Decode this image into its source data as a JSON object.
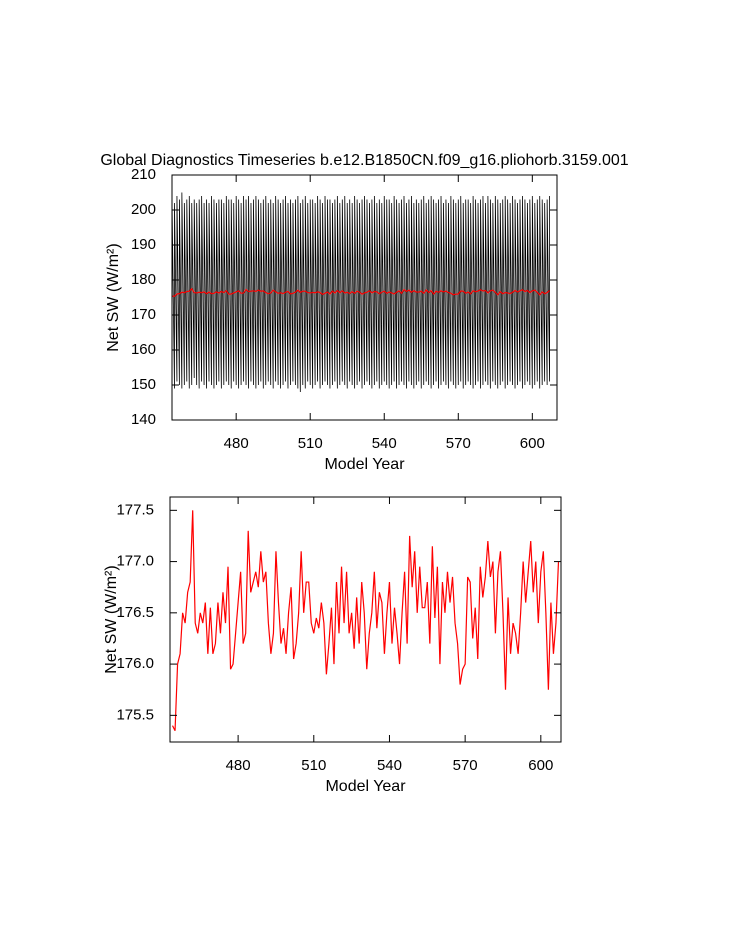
{
  "chart_data": [
    {
      "type": "line",
      "title": "Global Diagnostics Timeseries b.e12.B1850CN.f09_g16.pliohorb.3159.001",
      "xlabel": "Model Year",
      "ylabel": "Net SW (W/m²)",
      "xlim": [
        454,
        610
      ],
      "ylim": [
        140,
        210
      ],
      "xticks": [
        480,
        510,
        540,
        570,
        600
      ],
      "yticks": [
        140,
        150,
        160,
        170,
        180,
        190,
        200,
        210
      ],
      "x": [
        454,
        455,
        456,
        457,
        458,
        459,
        460,
        461,
        462,
        463,
        464,
        465,
        466,
        467,
        468,
        469,
        470,
        471,
        472,
        473,
        474,
        475,
        476,
        477,
        478,
        479,
        480,
        481,
        482,
        483,
        484,
        485,
        486,
        487,
        488,
        489,
        490,
        491,
        492,
        493,
        494,
        495,
        496,
        497,
        498,
        499,
        500,
        501,
        502,
        503,
        504,
        505,
        506,
        507,
        508,
        509,
        510,
        511,
        512,
        513,
        514,
        515,
        516,
        517,
        518,
        519,
        520,
        521,
        522,
        523,
        524,
        525,
        526,
        527,
        528,
        529,
        530,
        531,
        532,
        533,
        534,
        535,
        536,
        537,
        538,
        539,
        540,
        541,
        542,
        543,
        544,
        545,
        546,
        547,
        548,
        549,
        550,
        551,
        552,
        553,
        554,
        555,
        556,
        557,
        558,
        559,
        560,
        561,
        562,
        563,
        564,
        565,
        566,
        567,
        568,
        569,
        570,
        571,
        572,
        573,
        574,
        575,
        576,
        577,
        578,
        579,
        580,
        581,
        582,
        583,
        584,
        585,
        586,
        587,
        588,
        589,
        590,
        591,
        592,
        593,
        594,
        595,
        596,
        597,
        598,
        599,
        600,
        601,
        602,
        603,
        604,
        605,
        606,
        607
      ],
      "series": [
        {
          "color": "#000000",
          "high": [
            203,
            202,
            204,
            203,
            205,
            202,
            203,
            204,
            202,
            203,
            202,
            203,
            204,
            202,
            203,
            202,
            204,
            203,
            202,
            203,
            203,
            202,
            204,
            203,
            203,
            202,
            204,
            203,
            202,
            204,
            203,
            204,
            202,
            203,
            204,
            203,
            202,
            203,
            204,
            202,
            203,
            202,
            204,
            203,
            202,
            203,
            204,
            202,
            203,
            202,
            203,
            204,
            202,
            203,
            204,
            202,
            203,
            203,
            202,
            204,
            203,
            202,
            204,
            203,
            203,
            202,
            203,
            204,
            202,
            203,
            204,
            202,
            203,
            202,
            204,
            203,
            202,
            203,
            204,
            203,
            202,
            203,
            204,
            202,
            203,
            202,
            204,
            203,
            203,
            202,
            204,
            203,
            202,
            203,
            204,
            202,
            203,
            204,
            202,
            203,
            202,
            203,
            204,
            202,
            203,
            204,
            203,
            202,
            203,
            204,
            202,
            203,
            202,
            204,
            203,
            202,
            203,
            204,
            202,
            203,
            203,
            202,
            204,
            203,
            202,
            203,
            204,
            202,
            204,
            203,
            202,
            204,
            203,
            202,
            203,
            204,
            203,
            202,
            204,
            203,
            202,
            203,
            204,
            203,
            202,
            203,
            204,
            202,
            203,
            204,
            203,
            202,
            203,
            204
          ],
          "low": [
            150,
            149,
            151,
            150,
            149,
            150,
            151,
            149,
            150,
            152,
            150,
            149,
            151,
            150,
            149,
            151,
            150,
            149,
            150,
            151,
            149,
            150,
            151,
            150,
            149,
            151,
            150,
            149,
            150,
            151,
            150,
            149,
            151,
            150,
            149,
            150,
            151,
            149,
            150,
            151,
            150,
            149,
            151,
            150,
            149,
            150,
            151,
            149,
            150,
            151,
            150,
            149,
            148,
            150,
            149,
            151,
            150,
            149,
            150,
            151,
            149,
            150,
            151,
            150,
            149,
            150,
            151,
            149,
            150,
            151,
            150,
            149,
            151,
            150,
            149,
            150,
            151,
            149,
            150,
            151,
            150,
            149,
            150,
            151,
            149,
            150,
            151,
            150,
            149,
            150,
            151,
            149,
            150,
            151,
            150,
            149,
            151,
            150,
            149,
            150,
            151,
            149,
            150,
            151,
            150,
            149,
            150,
            151,
            149,
            150,
            151,
            150,
            149,
            151,
            150,
            149,
            150,
            151,
            149,
            150,
            151,
            150,
            149,
            150,
            151,
            149,
            150,
            151,
            150,
            149,
            151,
            150,
            149,
            150,
            151,
            149,
            150,
            151,
            150,
            149,
            150,
            151,
            149,
            150,
            151,
            150,
            149,
            150,
            151,
            149,
            150,
            151,
            150,
            151
          ]
        },
        {
          "color": "#ff0000",
          "values": [
            175.4,
            175.35,
            176.0,
            176.1,
            176.5,
            176.4,
            176.7,
            176.8,
            177.5,
            176.4,
            176.3,
            176.5,
            176.4,
            176.6,
            176.1,
            176.55,
            176.1,
            176.2,
            176.6,
            176.3,
            176.7,
            176.4,
            176.95,
            175.95,
            176.0,
            176.3,
            176.6,
            176.9,
            176.2,
            176.3,
            177.3,
            176.7,
            176.8,
            176.9,
            176.75,
            177.1,
            176.8,
            176.9,
            176.4,
            176.1,
            176.3,
            177.1,
            176.6,
            176.2,
            176.35,
            176.1,
            176.5,
            176.75,
            176.05,
            176.2,
            176.5,
            177.1,
            176.5,
            176.8,
            176.8,
            176.4,
            176.3,
            176.45,
            176.35,
            176.6,
            176.4,
            175.9,
            176.2,
            176.55,
            176.0,
            176.8,
            176.3,
            176.95,
            176.4,
            176.9,
            176.3,
            176.5,
            176.15,
            176.65,
            176.2,
            176.8,
            176.5,
            175.95,
            176.3,
            176.5,
            176.9,
            176.35,
            176.7,
            176.6,
            176.1,
            176.5,
            176.8,
            176.2,
            176.55,
            176.3,
            176.0,
            176.5,
            176.9,
            176.2,
            177.25,
            176.75,
            177.1,
            176.5,
            176.95,
            176.55,
            176.55,
            176.8,
            176.2,
            177.15,
            176.45,
            176.95,
            176.0,
            176.8,
            176.5,
            176.9,
            176.6,
            176.85,
            176.4,
            176.2,
            175.8,
            175.95,
            176.0,
            176.85,
            176.8,
            176.25,
            176.55,
            176.05,
            176.95,
            176.65,
            176.85,
            177.2,
            176.85,
            177.0,
            176.3,
            176.9,
            177.1,
            176.5,
            175.75,
            176.65,
            176.1,
            176.4,
            176.3,
            176.1,
            176.5,
            177.0,
            176.6,
            176.9,
            177.2,
            176.7,
            177.0,
            176.4,
            176.9,
            177.1,
            176.5,
            175.75,
            176.6,
            176.1,
            176.4,
            177.0
          ]
        }
      ]
    },
    {
      "type": "line",
      "xlabel": "Model Year",
      "ylabel": "Net SW (W/m²)",
      "xlim": [
        453,
        608
      ],
      "ylim": [
        175.24,
        177.63
      ],
      "xticks": [
        480,
        510,
        540,
        570,
        600
      ],
      "yticks": [
        175.5,
        {
          "value": 176.0,
          "label": "176.0"
        },
        176.5,
        {
          "value": 177.0,
          "label": "177.0"
        },
        177.5
      ],
      "x": [
        454,
        455,
        456,
        457,
        458,
        459,
        460,
        461,
        462,
        463,
        464,
        465,
        466,
        467,
        468,
        469,
        470,
        471,
        472,
        473,
        474,
        475,
        476,
        477,
        478,
        479,
        480,
        481,
        482,
        483,
        484,
        485,
        486,
        487,
        488,
        489,
        490,
        491,
        492,
        493,
        494,
        495,
        496,
        497,
        498,
        499,
        500,
        501,
        502,
        503,
        504,
        505,
        506,
        507,
        508,
        509,
        510,
        511,
        512,
        513,
        514,
        515,
        516,
        517,
        518,
        519,
        520,
        521,
        522,
        523,
        524,
        525,
        526,
        527,
        528,
        529,
        530,
        531,
        532,
        533,
        534,
        535,
        536,
        537,
        538,
        539,
        540,
        541,
        542,
        543,
        544,
        545,
        546,
        547,
        548,
        549,
        550,
        551,
        552,
        553,
        554,
        555,
        556,
        557,
        558,
        559,
        560,
        561,
        562,
        563,
        564,
        565,
        566,
        567,
        568,
        569,
        570,
        571,
        572,
        573,
        574,
        575,
        576,
        577,
        578,
        579,
        580,
        581,
        582,
        583,
        584,
        585,
        586,
        587,
        588,
        589,
        590,
        591,
        592,
        593,
        594,
        595,
        596,
        597,
        598,
        599,
        600,
        601,
        602,
        603,
        604,
        605,
        606,
        607
      ],
      "series": [
        {
          "color": "#ff0000",
          "values": [
            175.4,
            175.35,
            176.0,
            176.1,
            176.5,
            176.4,
            176.7,
            176.8,
            177.5,
            176.4,
            176.3,
            176.5,
            176.4,
            176.6,
            176.1,
            176.55,
            176.1,
            176.2,
            176.6,
            176.3,
            176.7,
            176.4,
            176.95,
            175.95,
            176.0,
            176.3,
            176.6,
            176.9,
            176.2,
            176.3,
            177.3,
            176.7,
            176.8,
            176.9,
            176.75,
            177.1,
            176.8,
            176.9,
            176.4,
            176.1,
            176.3,
            177.1,
            176.6,
            176.2,
            176.35,
            176.1,
            176.5,
            176.75,
            176.05,
            176.2,
            176.5,
            177.1,
            176.5,
            176.8,
            176.8,
            176.4,
            176.3,
            176.45,
            176.35,
            176.6,
            176.4,
            175.9,
            176.2,
            176.55,
            176.0,
            176.8,
            176.3,
            176.95,
            176.4,
            176.9,
            176.3,
            176.5,
            176.15,
            176.65,
            176.2,
            176.8,
            176.5,
            175.95,
            176.3,
            176.5,
            176.9,
            176.35,
            176.7,
            176.6,
            176.1,
            176.5,
            176.8,
            176.2,
            176.55,
            176.3,
            176.0,
            176.5,
            176.9,
            176.2,
            177.25,
            176.75,
            177.1,
            176.5,
            176.95,
            176.55,
            176.55,
            176.8,
            176.2,
            177.15,
            176.45,
            176.95,
            176.0,
            176.8,
            176.5,
            176.9,
            176.6,
            176.85,
            176.4,
            176.2,
            175.8,
            175.95,
            176.0,
            176.85,
            176.8,
            176.25,
            176.55,
            176.05,
            176.95,
            176.65,
            176.85,
            177.2,
            176.85,
            177.0,
            176.3,
            176.9,
            177.1,
            176.5,
            175.75,
            176.65,
            176.1,
            176.4,
            176.3,
            176.1,
            176.5,
            177.0,
            176.6,
            176.9,
            177.2,
            176.7,
            177.0,
            176.4,
            176.9,
            177.1,
            176.5,
            175.75,
            176.6,
            176.1,
            176.4,
            177.0
          ]
        }
      ]
    }
  ]
}
